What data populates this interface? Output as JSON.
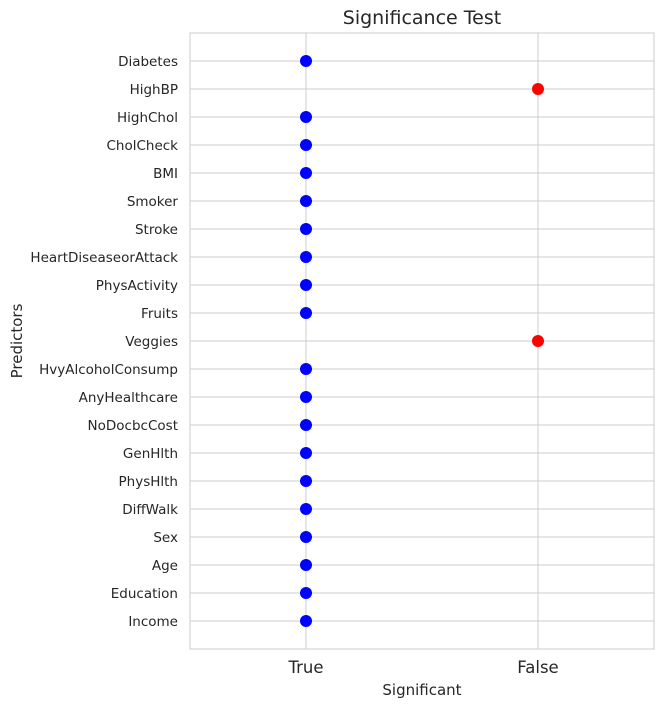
{
  "chart_data": {
    "type": "scatter",
    "title": "Significance Test",
    "xlabel": "Significant",
    "ylabel": "Predictors",
    "x_categories": [
      "True",
      "False"
    ],
    "grid": true,
    "points": [
      {
        "predictor": "Diabetes",
        "significant": "True"
      },
      {
        "predictor": "HighBP",
        "significant": "False"
      },
      {
        "predictor": "HighChol",
        "significant": "True"
      },
      {
        "predictor": "CholCheck",
        "significant": "True"
      },
      {
        "predictor": "BMI",
        "significant": "True"
      },
      {
        "predictor": "Smoker",
        "significant": "True"
      },
      {
        "predictor": "Stroke",
        "significant": "True"
      },
      {
        "predictor": "HeartDiseaseorAttack",
        "significant": "True"
      },
      {
        "predictor": "PhysActivity",
        "significant": "True"
      },
      {
        "predictor": "Fruits",
        "significant": "True"
      },
      {
        "predictor": "Veggies",
        "significant": "False"
      },
      {
        "predictor": "HvyAlcoholConsump",
        "significant": "True"
      },
      {
        "predictor": "AnyHealthcare",
        "significant": "True"
      },
      {
        "predictor": "NoDocbcCost",
        "significant": "True"
      },
      {
        "predictor": "GenHlth",
        "significant": "True"
      },
      {
        "predictor": "PhysHlth",
        "significant": "True"
      },
      {
        "predictor": "DiffWalk",
        "significant": "True"
      },
      {
        "predictor": "Sex",
        "significant": "True"
      },
      {
        "predictor": "Age",
        "significant": "True"
      },
      {
        "predictor": "Education",
        "significant": "True"
      },
      {
        "predictor": "Income",
        "significant": "True"
      }
    ],
    "colors": {
      "True": "#0000ff",
      "False": "#ff0000",
      "grid": "#cccccc",
      "spine": "#cccccc"
    }
  }
}
